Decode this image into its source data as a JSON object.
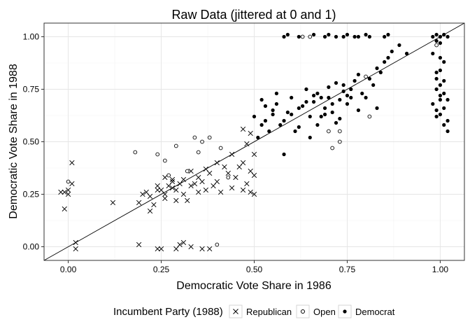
{
  "chart_data": {
    "type": "scatter",
    "title": "Raw Data (jittered at 0 and 1)",
    "xlabel": "Democratic Vote Share in 1986",
    "ylabel": "Democratic Vote Share in 1988",
    "xlim": [
      -0.065,
      1.065
    ],
    "ylim": [
      -0.065,
      1.065
    ],
    "x_ticks": [
      0.0,
      0.25,
      0.5,
      0.75,
      1.0
    ],
    "y_ticks": [
      0.0,
      0.25,
      0.5,
      0.75,
      1.0
    ],
    "x_tick_labels": [
      "0.00",
      "0.25",
      "0.50",
      "0.75",
      "1.00"
    ],
    "y_tick_labels": [
      "0.00",
      "0.25",
      "0.50",
      "0.75",
      "1.00"
    ],
    "grid": true,
    "reference_line": {
      "intercept": 0,
      "slope": 1
    },
    "legend": {
      "title": "Incumbent Party (1988)",
      "position": "bottom",
      "entries": [
        "Republican",
        "Open",
        "Democrat"
      ]
    },
    "series": [
      {
        "name": "Republican",
        "marker": "x",
        "points": [
          [
            -0.01,
            0.18
          ],
          [
            -0.01,
            0.26
          ],
          [
            0.0,
            0.27
          ],
          [
            0.0,
            0.25
          ],
          [
            -0.02,
            0.26
          ],
          [
            0.01,
            0.4
          ],
          [
            0.01,
            0.3
          ],
          [
            0.02,
            0.02
          ],
          [
            0.02,
            -0.01
          ],
          [
            0.12,
            0.21
          ],
          [
            0.19,
            0.21
          ],
          [
            0.2,
            0.25
          ],
          [
            0.21,
            0.26
          ],
          [
            0.22,
            0.24
          ],
          [
            0.22,
            0.17
          ],
          [
            0.23,
            0.2
          ],
          [
            0.24,
            0.29
          ],
          [
            0.25,
            0.27
          ],
          [
            0.26,
            0.25
          ],
          [
            0.26,
            0.33
          ],
          [
            0.27,
            0.29
          ],
          [
            0.28,
            0.31
          ],
          [
            0.28,
            0.28
          ],
          [
            0.29,
            0.27
          ],
          [
            0.29,
            0.22
          ],
          [
            0.3,
            0.3
          ],
          [
            0.31,
            0.32
          ],
          [
            0.31,
            0.25
          ],
          [
            0.32,
            0.22
          ],
          [
            0.33,
            0.36
          ],
          [
            0.33,
            0.29
          ],
          [
            0.34,
            0.3
          ],
          [
            0.35,
            0.33
          ],
          [
            0.35,
            0.26
          ],
          [
            0.36,
            0.31
          ],
          [
            0.37,
            0.37
          ],
          [
            0.37,
            0.27
          ],
          [
            0.38,
            0.35
          ],
          [
            0.39,
            0.29
          ],
          [
            0.4,
            0.31
          ],
          [
            0.4,
            0.4
          ],
          [
            0.41,
            0.26
          ],
          [
            0.42,
            0.38
          ],
          [
            0.43,
            0.35
          ],
          [
            0.44,
            0.28
          ],
          [
            0.44,
            0.44
          ],
          [
            0.45,
            0.33
          ],
          [
            0.46,
            0.38
          ],
          [
            0.47,
            0.27
          ],
          [
            0.47,
            0.4
          ],
          [
            0.48,
            0.49
          ],
          [
            0.48,
            0.3
          ],
          [
            0.49,
            0.36
          ],
          [
            0.49,
            0.26
          ],
          [
            0.5,
            0.44
          ],
          [
            0.5,
            0.34
          ],
          [
            0.5,
            0.25
          ],
          [
            0.47,
            0.56
          ],
          [
            0.49,
            0.54
          ],
          [
            0.28,
            0.32
          ],
          [
            0.24,
            0.27
          ],
          [
            0.26,
            0.23
          ],
          [
            0.19,
            0.01
          ],
          [
            0.24,
            -0.01
          ],
          [
            0.25,
            -0.01
          ],
          [
            0.29,
            -0.01
          ],
          [
            0.3,
            0.01
          ],
          [
            0.31,
            0.02
          ],
          [
            0.33,
            0.0
          ],
          [
            0.36,
            -0.01
          ],
          [
            0.38,
            -0.01
          ]
        ]
      },
      {
        "name": "Open",
        "marker": "circle",
        "points": [
          [
            0.0,
            0.31
          ],
          [
            0.18,
            0.45
          ],
          [
            0.24,
            0.44
          ],
          [
            0.26,
            0.41
          ],
          [
            0.27,
            0.34
          ],
          [
            0.29,
            0.48
          ],
          [
            0.32,
            0.36
          ],
          [
            0.35,
            0.45
          ],
          [
            0.36,
            0.5
          ],
          [
            0.38,
            0.52
          ],
          [
            0.41,
            0.47
          ],
          [
            0.43,
            0.33
          ],
          [
            0.34,
            0.52
          ],
          [
            0.4,
            0.01
          ],
          [
            0.63,
            1.0
          ],
          [
            0.65,
            1.0
          ],
          [
            0.7,
            0.55
          ],
          [
            0.71,
            0.47
          ],
          [
            0.73,
            0.5
          ],
          [
            0.73,
            0.55
          ],
          [
            0.8,
            0.81
          ],
          [
            0.81,
            0.62
          ],
          [
            0.99,
            0.96
          ]
        ]
      },
      {
        "name": "Democrat",
        "marker": "filled-circle",
        "points": [
          [
            0.5,
            0.62
          ],
          [
            0.51,
            0.52
          ],
          [
            0.52,
            0.58
          ],
          [
            0.53,
            0.67
          ],
          [
            0.54,
            0.55
          ],
          [
            0.55,
            0.63
          ],
          [
            0.56,
            0.68
          ],
          [
            0.57,
            0.58
          ],
          [
            0.58,
            0.44
          ],
          [
            0.58,
            0.6
          ],
          [
            0.59,
            0.64
          ],
          [
            0.6,
            0.71
          ],
          [
            0.61,
            0.55
          ],
          [
            0.62,
            0.57
          ],
          [
            0.63,
            0.67
          ],
          [
            0.64,
            0.75
          ],
          [
            0.65,
            0.62
          ],
          [
            0.65,
            0.52
          ],
          [
            0.66,
            0.69
          ],
          [
            0.67,
            0.58
          ],
          [
            0.67,
            0.73
          ],
          [
            0.68,
            0.62
          ],
          [
            0.69,
            0.66
          ],
          [
            0.7,
            0.76
          ],
          [
            0.71,
            0.64
          ],
          [
            0.71,
            0.68
          ],
          [
            0.72,
            0.59
          ],
          [
            0.72,
            0.78
          ],
          [
            0.73,
            0.7
          ],
          [
            0.73,
            0.61
          ],
          [
            0.74,
            0.77
          ],
          [
            0.75,
            0.68
          ],
          [
            0.75,
            0.72
          ],
          [
            0.76,
            0.75
          ],
          [
            0.77,
            0.79
          ],
          [
            0.78,
            0.65
          ],
          [
            0.78,
            0.82
          ],
          [
            0.79,
            0.73
          ],
          [
            0.8,
            0.71
          ],
          [
            0.81,
            0.8
          ],
          [
            0.82,
            0.77
          ],
          [
            0.83,
            0.66
          ],
          [
            0.83,
            0.85
          ],
          [
            0.84,
            0.83
          ],
          [
            0.85,
            0.88
          ],
          [
            0.86,
            0.9
          ],
          [
            0.87,
            0.93
          ],
          [
            0.89,
            0.96
          ],
          [
            0.91,
            0.92
          ],
          [
            0.69,
            0.63
          ],
          [
            0.64,
            0.69
          ],
          [
            0.56,
            0.73
          ],
          [
            0.53,
            0.6
          ],
          [
            0.6,
            0.63
          ],
          [
            0.62,
            0.66
          ],
          [
            0.68,
            0.71
          ],
          [
            0.74,
            0.74
          ],
          [
            0.76,
            0.71
          ],
          [
            0.7,
            0.71
          ],
          [
            0.66,
            0.72
          ],
          [
            0.52,
            0.7
          ],
          [
            0.55,
            0.65
          ],
          [
            0.58,
            1.0
          ],
          [
            0.59,
            1.01
          ],
          [
            0.62,
            1.0
          ],
          [
            0.66,
            1.01
          ],
          [
            0.69,
            1.0
          ],
          [
            0.7,
            1.01
          ],
          [
            0.72,
            1.0
          ],
          [
            0.74,
            1.0
          ],
          [
            0.75,
            1.01
          ],
          [
            0.77,
            1.0
          ],
          [
            0.78,
            1.0
          ],
          [
            0.8,
            1.01
          ],
          [
            0.81,
            1.0
          ],
          [
            0.85,
            1.0
          ],
          [
            0.86,
            1.01
          ],
          [
            0.98,
            1.0
          ],
          [
            0.99,
            1.01
          ],
          [
            1.0,
            1.0
          ],
          [
            1.01,
            1.01
          ],
          [
            1.02,
            1.0
          ],
          [
            0.99,
            0.98
          ],
          [
            1.0,
            0.97
          ],
          [
            0.98,
            0.92
          ],
          [
            1.0,
            0.9
          ],
          [
            1.01,
            0.88
          ],
          [
            1.0,
            0.84
          ],
          [
            0.99,
            0.83
          ],
          [
            1.01,
            0.79
          ],
          [
            1.0,
            0.77
          ],
          [
            0.99,
            0.75
          ],
          [
            1.01,
            0.73
          ],
          [
            1.02,
            0.7
          ],
          [
            1.0,
            0.72
          ],
          [
            0.98,
            0.68
          ],
          [
            1.01,
            0.66
          ],
          [
            0.99,
            0.65
          ],
          [
            1.0,
            0.63
          ],
          [
            1.02,
            0.6
          ],
          [
            1.01,
            0.58
          ],
          [
            0.99,
            0.62
          ],
          [
            1.02,
            0.55
          ],
          [
            0.99,
            0.8
          ],
          [
            1.0,
            0.7
          ]
        ]
      }
    ]
  }
}
